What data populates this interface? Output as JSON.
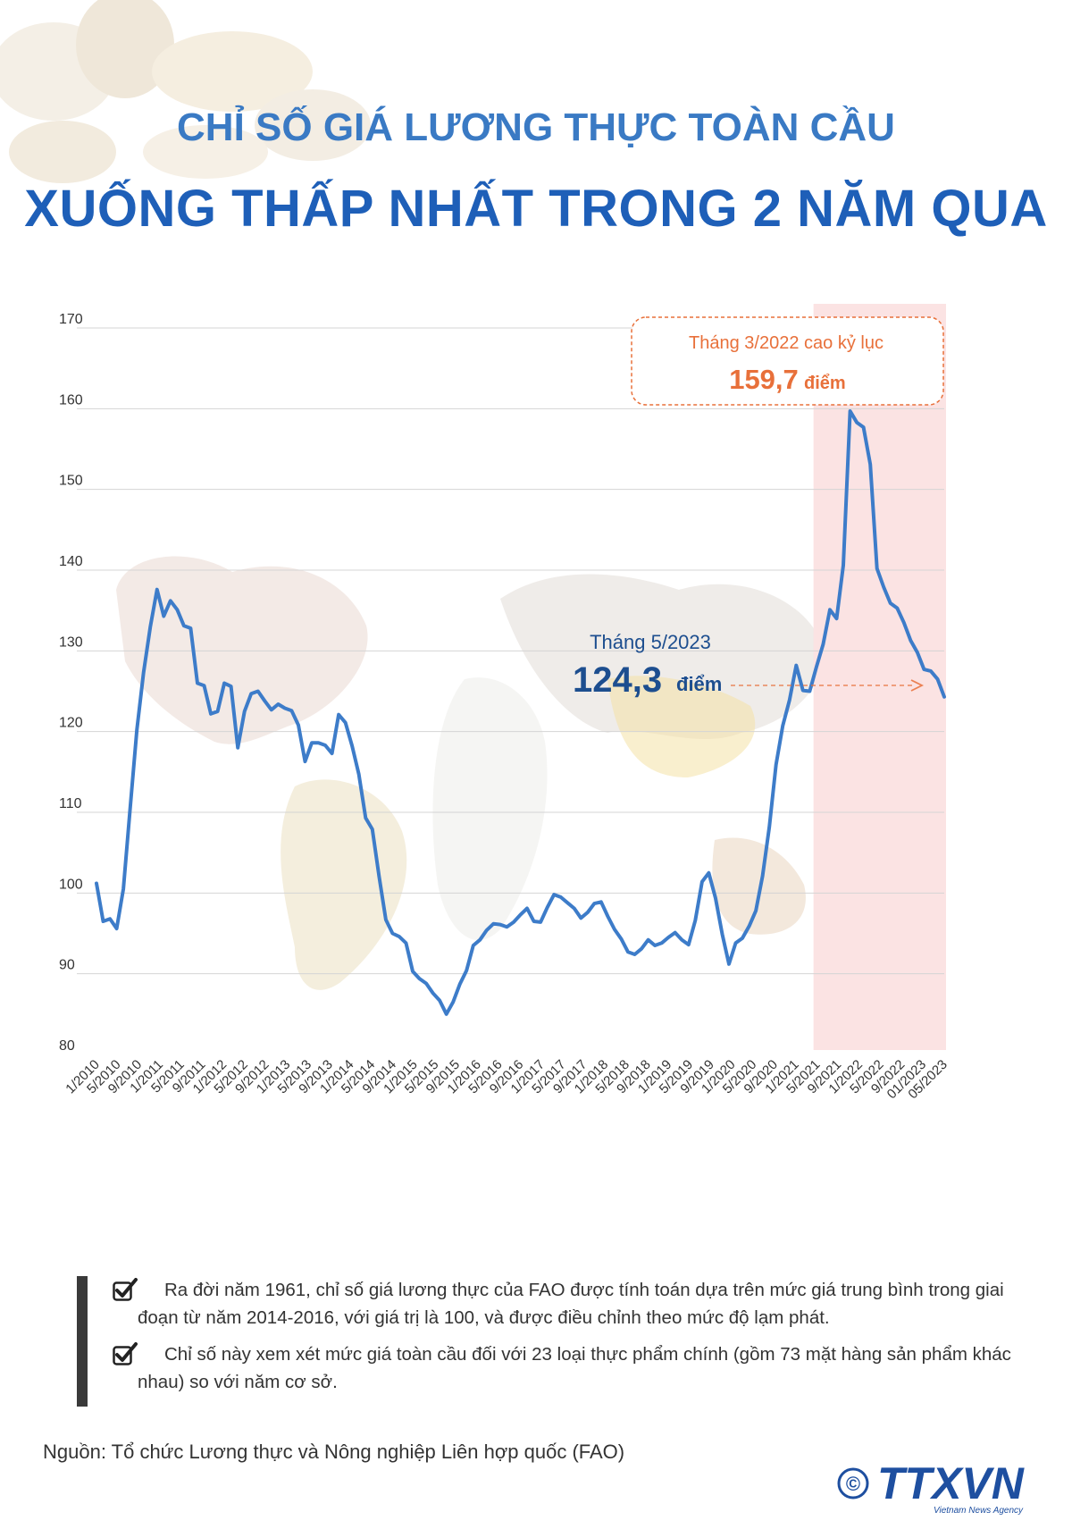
{
  "header": {
    "title_line1": "CHỈ SỐ GIÁ LƯƠNG THỰC TOÀN CẦU",
    "title_line2": "XUỐNG THẤP NHẤT TRONG 2 NĂM QUA"
  },
  "colors": {
    "line": "#3d7cc9",
    "title_light": "#3a7ac4",
    "title_dark": "#1e5fb8",
    "highlight_band": "#fbe3e3",
    "callout_orange": "#e8703a",
    "annotation_blue": "#1d4e8f"
  },
  "chart_data": {
    "type": "line",
    "title": "",
    "xlabel": "",
    "ylabel": "",
    "ylim": [
      80,
      170
    ],
    "yticks": [
      "80",
      "90",
      "100",
      "110",
      "120",
      "130",
      "140",
      "150",
      "160",
      "170"
    ],
    "grid": "horizontal",
    "highlight_range": [
      "5/2021",
      "05/2023"
    ],
    "x_ticks": [
      "1/2010",
      "5/2010",
      "9/2010",
      "1/2011",
      "5/2011",
      "9/2011",
      "1/2012",
      "5/2012",
      "9/2012",
      "1/2013",
      "5/2013",
      "9/2013",
      "1/2014",
      "5/2014",
      "9/2014",
      "1/2015",
      "5/2015",
      "9/2015",
      "1/2016",
      "5/2016",
      "9/2016",
      "1/2017",
      "5/2017",
      "9/2017",
      "1/2018",
      "5/2018",
      "9/2018",
      "1/2019",
      "5/2019",
      "9/2019",
      "1/2020",
      "5/2020",
      "9/2020",
      "1/2021",
      "5/2021",
      "9/2021",
      "1/2022",
      "5/2022",
      "9/2022",
      "01/2023",
      "05/2023"
    ],
    "values": [
      101.2,
      96.5,
      96.8,
      95.6,
      100.5,
      110.5,
      120.2,
      127.3,
      133.0,
      137.6,
      134.3,
      136.2,
      135.1,
      133.1,
      132.8,
      126.0,
      125.7,
      122.2,
      122.5,
      126.0,
      125.6,
      118.0,
      122.5,
      124.7,
      125.0,
      123.8,
      122.7,
      123.4,
      122.9,
      122.6,
      120.8,
      116.3,
      118.6,
      118.6,
      118.3,
      117.3,
      122.1,
      121.1,
      118.2,
      114.7,
      109.3,
      107.9,
      102.1,
      96.7,
      95.0,
      94.6,
      93.8,
      90.3,
      89.4,
      88.8,
      87.6,
      86.7,
      85.0,
      86.5,
      88.7,
      90.4,
      93.5,
      94.2,
      95.4,
      96.2,
      96.1,
      95.8,
      96.4,
      97.3,
      98.1,
      96.5,
      96.4,
      98.2,
      99.8,
      99.5,
      98.8,
      98.1,
      96.9,
      97.6,
      98.7,
      98.9,
      97.1,
      95.5,
      94.3,
      92.7,
      92.4,
      93.1,
      94.2,
      93.5,
      93.8,
      94.5,
      95.1,
      94.2,
      93.6,
      96.6,
      101.4,
      102.5,
      99.4,
      94.9,
      91.2,
      93.8,
      94.4,
      95.9,
      97.8,
      102.1,
      108.2,
      115.9,
      120.7,
      123.9,
      128.2,
      125.1,
      125.0,
      128.0,
      130.8,
      135.1,
      134.0,
      140.6,
      159.7,
      158.3,
      157.7,
      153.1,
      140.2,
      137.9,
      135.9,
      135.3,
      133.5,
      131.3,
      129.8,
      127.7,
      127.5,
      126.5,
      124.3
    ]
  },
  "annotations": {
    "peak": {
      "label": "Tháng 3/2022 cao kỷ lục",
      "value": "159,7",
      "unit": "điểm"
    },
    "latest": {
      "label": "Tháng 5/2023",
      "value": "124,3",
      "unit": "điểm"
    }
  },
  "notes": [
    "Ra đời năm 1961, chỉ số giá lương thực của FAO được tính toán dựa trên mức giá trung bình trong giai đoạn từ năm 2014-2016, với giá trị là 100, và được điều chỉnh theo mức độ lạm phát.",
    "Chỉ số này xem xét mức giá toàn cầu đối với 23 loại thực phẩm chính (gồm 73 mặt hàng sản phẩm khác nhau) so với năm cơ sở."
  ],
  "footer": {
    "source": "Nguồn: Tổ chức Lương thực và Nông nghiệp Liên hợp quốc (FAO)",
    "logo_text": "TTXVN",
    "logo_sub": "Vietnam News Agency",
    "copyright": "©"
  },
  "icons": [
    "checkbox-icon",
    "copyright-icon",
    "dashed-arrow-icon"
  ]
}
